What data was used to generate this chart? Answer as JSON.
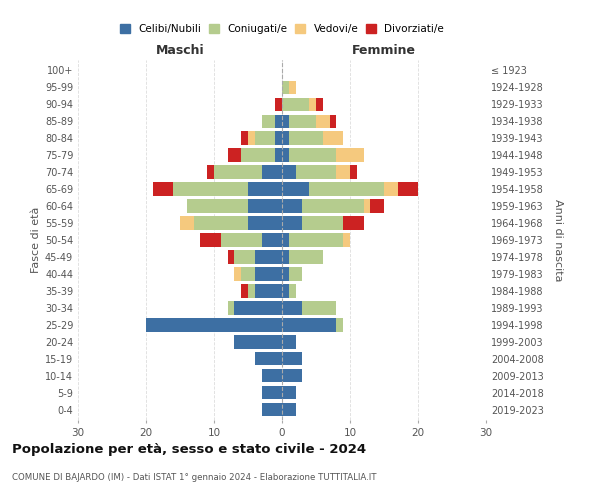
{
  "age_groups": [
    "0-4",
    "5-9",
    "10-14",
    "15-19",
    "20-24",
    "25-29",
    "30-34",
    "35-39",
    "40-44",
    "45-49",
    "50-54",
    "55-59",
    "60-64",
    "65-69",
    "70-74",
    "75-79",
    "80-84",
    "85-89",
    "90-94",
    "95-99",
    "100+"
  ],
  "birth_years": [
    "2019-2023",
    "2014-2018",
    "2009-2013",
    "2004-2008",
    "1999-2003",
    "1994-1998",
    "1989-1993",
    "1984-1988",
    "1979-1983",
    "1974-1978",
    "1969-1973",
    "1964-1968",
    "1959-1963",
    "1954-1958",
    "1949-1953",
    "1944-1948",
    "1939-1943",
    "1934-1938",
    "1929-1933",
    "1924-1928",
    "≤ 1923"
  ],
  "colors": {
    "celibi": "#3d6fa3",
    "coniugati": "#b5cc8e",
    "vedovi": "#f5c97e",
    "divorziati": "#cc2222"
  },
  "males": {
    "celibi": [
      3,
      3,
      3,
      4,
      7,
      20,
      7,
      4,
      4,
      4,
      3,
      5,
      5,
      5,
      3,
      1,
      1,
      1,
      0,
      0,
      0
    ],
    "coniugati": [
      0,
      0,
      0,
      0,
      0,
      0,
      1,
      1,
      2,
      3,
      6,
      8,
      9,
      11,
      7,
      5,
      3,
      2,
      0,
      0,
      0
    ],
    "vedovi": [
      0,
      0,
      0,
      0,
      0,
      0,
      0,
      0,
      1,
      0,
      0,
      2,
      0,
      0,
      0,
      0,
      1,
      0,
      0,
      0,
      0
    ],
    "divorziati": [
      0,
      0,
      0,
      0,
      0,
      0,
      0,
      1,
      0,
      1,
      3,
      0,
      0,
      3,
      1,
      2,
      1,
      0,
      1,
      0,
      0
    ]
  },
  "females": {
    "celibi": [
      2,
      2,
      3,
      3,
      2,
      8,
      3,
      1,
      1,
      1,
      1,
      3,
      3,
      4,
      2,
      1,
      1,
      1,
      0,
      0,
      0
    ],
    "coniugati": [
      0,
      0,
      0,
      0,
      0,
      1,
      5,
      1,
      2,
      5,
      8,
      6,
      9,
      11,
      6,
      7,
      5,
      4,
      4,
      1,
      0
    ],
    "vedovi": [
      0,
      0,
      0,
      0,
      0,
      0,
      0,
      0,
      0,
      0,
      1,
      0,
      1,
      2,
      2,
      4,
      3,
      2,
      1,
      1,
      0
    ],
    "divorziati": [
      0,
      0,
      0,
      0,
      0,
      0,
      0,
      0,
      0,
      0,
      0,
      3,
      2,
      3,
      1,
      0,
      0,
      1,
      1,
      0,
      0
    ]
  },
  "title": "Popolazione per età, sesso e stato civile - 2024",
  "subtitle": "COMUNE DI BAJARDO (IM) - Dati ISTAT 1° gennaio 2024 - Elaborazione TUTTITALIA.IT",
  "xlabel_left": "Maschi",
  "xlabel_right": "Femmine",
  "ylabel_left": "Fasce di età",
  "ylabel_right": "Anni di nascita",
  "xlim": 30,
  "legend_labels": [
    "Celibi/Nubili",
    "Coniugati/e",
    "Vedovi/e",
    "Divorziati/e"
  ],
  "bg_color": "#ffffff",
  "grid_color": "#cccccc"
}
